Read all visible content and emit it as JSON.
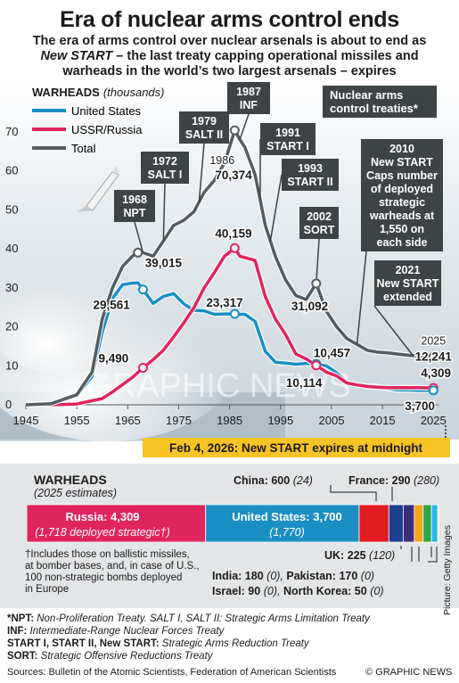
{
  "title": "Era of nuclear arms control ends",
  "subtitle": {
    "line1": "The era of arms control over nuclear arsenals is about to end as",
    "line2_italic": "New START",
    "line2_rest": " – the last treaty capping operational missiles and",
    "line3": "warheads in the world’s two largest arsenals – expires"
  },
  "chart_data": {
    "type": "line",
    "ylabel": "WARHEADS",
    "ylabel_unit": "(thousands)",
    "x_ticks": [
      1945,
      1955,
      1965,
      1975,
      1985,
      1995,
      2005,
      2015,
      2025
    ],
    "y_ticks": [
      0,
      10,
      20,
      30,
      40,
      50,
      60,
      70
    ],
    "xlim": [
      1945,
      2026
    ],
    "ylim": [
      0,
      72
    ],
    "grid": false,
    "legend_position": "top-left",
    "series": [
      {
        "name": "United States",
        "color": "#1a8fc4",
        "points": [
          [
            1945,
            0.002
          ],
          [
            1950,
            0.3
          ],
          [
            1955,
            2.4
          ],
          [
            1958,
            7.3
          ],
          [
            1960,
            18.6
          ],
          [
            1962,
            27.3
          ],
          [
            1964,
            30.8
          ],
          [
            1966,
            31.2
          ],
          [
            1967,
            31.255
          ],
          [
            1968,
            29.561
          ],
          [
            1970,
            26.0
          ],
          [
            1972,
            27.8
          ],
          [
            1974,
            28.5
          ],
          [
            1976,
            25.9
          ],
          [
            1978,
            24.2
          ],
          [
            1980,
            24.1
          ],
          [
            1982,
            23.2
          ],
          [
            1984,
            23.3
          ],
          [
            1986,
            23.317
          ],
          [
            1987,
            23.2
          ],
          [
            1988,
            23.2
          ],
          [
            1990,
            21.4
          ],
          [
            1992,
            13.7
          ],
          [
            1994,
            10.9
          ],
          [
            1996,
            10.7
          ],
          [
            1998,
            10.4
          ],
          [
            2000,
            10.6
          ],
          [
            2002,
            10.457
          ],
          [
            2004,
            10.0
          ],
          [
            2006,
            8.2
          ],
          [
            2008,
            5.7
          ],
          [
            2010,
            5.07
          ],
          [
            2012,
            4.8
          ],
          [
            2014,
            4.7
          ],
          [
            2016,
            4.2
          ],
          [
            2018,
            3.8
          ],
          [
            2020,
            3.8
          ],
          [
            2022,
            3.7
          ],
          [
            2025,
            3.7
          ]
        ]
      },
      {
        "name": "USSR/Russia",
        "color": "#e0245e",
        "points": [
          [
            1949,
            0.001
          ],
          [
            1950,
            0.005
          ],
          [
            1955,
            0.2
          ],
          [
            1960,
            1.6
          ],
          [
            1962,
            3.3
          ],
          [
            1964,
            5.2
          ],
          [
            1966,
            7.1
          ],
          [
            1968,
            9.49
          ],
          [
            1970,
            11.6
          ],
          [
            1972,
            14.0
          ],
          [
            1974,
            17.4
          ],
          [
            1976,
            21.0
          ],
          [
            1978,
            24.9
          ],
          [
            1980,
            30.0
          ],
          [
            1982,
            33.9
          ],
          [
            1984,
            38.1
          ],
          [
            1986,
            40.159
          ],
          [
            1987,
            38.1
          ],
          [
            1990,
            37.0
          ],
          [
            1992,
            27.7
          ],
          [
            1994,
            22.0
          ],
          [
            1996,
            18.0
          ],
          [
            1998,
            13.0
          ],
          [
            2000,
            11.8
          ],
          [
            2002,
            10.114
          ],
          [
            2004,
            8.4
          ],
          [
            2006,
            7.4
          ],
          [
            2008,
            5.6
          ],
          [
            2010,
            5.1
          ],
          [
            2012,
            4.7
          ],
          [
            2014,
            4.5
          ],
          [
            2016,
            4.4
          ],
          [
            2018,
            4.4
          ],
          [
            2020,
            4.4
          ],
          [
            2022,
            4.4
          ],
          [
            2025,
            4.309
          ]
        ]
      },
      {
        "name": "Total",
        "color": "#555c61",
        "points": [
          [
            1945,
            0.002
          ],
          [
            1950,
            0.3
          ],
          [
            1955,
            2.6
          ],
          [
            1958,
            8.4
          ],
          [
            1960,
            22.0
          ],
          [
            1962,
            30.0
          ],
          [
            1964,
            35.5
          ],
          [
            1966,
            38.2
          ],
          [
            1967,
            39.015
          ],
          [
            1968,
            39.0
          ],
          [
            1970,
            38.1
          ],
          [
            1972,
            42.0
          ],
          [
            1974,
            46.0
          ],
          [
            1976,
            47.3
          ],
          [
            1978,
            49.5
          ],
          [
            1980,
            54.5
          ],
          [
            1982,
            57.5
          ],
          [
            1984,
            62.0
          ],
          [
            1986,
            70.374
          ],
          [
            1987,
            68.0
          ],
          [
            1988,
            66.0
          ],
          [
            1990,
            59.0
          ],
          [
            1992,
            46.0
          ],
          [
            1994,
            38.0
          ],
          [
            1996,
            32.0
          ],
          [
            1998,
            28.0
          ],
          [
            2000,
            27.0
          ],
          [
            2002,
            31.092
          ],
          [
            2004,
            24.0
          ],
          [
            2006,
            20.0
          ],
          [
            2008,
            17.0
          ],
          [
            2010,
            15.5
          ],
          [
            2012,
            14.0
          ],
          [
            2014,
            13.5
          ],
          [
            2016,
            13.3
          ],
          [
            2018,
            13.0
          ],
          [
            2020,
            12.7
          ],
          [
            2022,
            12.5
          ],
          [
            2025,
            12.241
          ]
        ]
      }
    ],
    "data_labels": [
      {
        "text": "39,015",
        "series": "Total",
        "x": 1967,
        "y": 39.015
      },
      {
        "text": "29,561",
        "series": "United States",
        "x": 1968,
        "y": 29.561
      },
      {
        "text": "9,490",
        "series": "USSR/Russia",
        "x": 1968,
        "y": 9.49
      },
      {
        "text": "1986",
        "series": "Total",
        "x": 1986,
        "y": 70.374
      },
      {
        "text": "70,374",
        "series": "Total",
        "x": 1986,
        "y": 70.374
      },
      {
        "text": "40,159",
        "series": "USSR/Russia",
        "x": 1986,
        "y": 40.159
      },
      {
        "text": "23,317",
        "series": "United States",
        "x": 1986,
        "y": 23.317
      },
      {
        "text": "31,092",
        "series": "Total",
        "x": 2002,
        "y": 31.092
      },
      {
        "text": "10,457",
        "series": "United States",
        "x": 2002,
        "y": 10.457
      },
      {
        "text": "10,114",
        "series": "USSR/Russia",
        "x": 2002,
        "y": 10.114
      },
      {
        "text": "2025",
        "series": "Total",
        "x": 2025,
        "y": 12.241
      },
      {
        "text": "12,241",
        "series": "Total",
        "x": 2025,
        "y": 12.241
      },
      {
        "text": "4,309",
        "series": "USSR/Russia",
        "x": 2025,
        "y": 4.309
      },
      {
        "text": "3,700",
        "series": "United States",
        "x": 2025,
        "y": 3.7
      }
    ],
    "treaty_header": [
      "Nuclear arms",
      "control treaties*"
    ],
    "treaties": [
      {
        "year": 1968,
        "lines": [
          "1968",
          "NPT"
        ]
      },
      {
        "year": 1972,
        "lines": [
          "1972",
          "SALT I"
        ]
      },
      {
        "year": 1979,
        "lines": [
          "1979",
          "SALT II"
        ]
      },
      {
        "year": 1987,
        "lines": [
          "1987",
          "INF"
        ]
      },
      {
        "year": 1991,
        "lines": [
          "1991",
          "START I"
        ]
      },
      {
        "year": 1993,
        "lines": [
          "1993",
          "START II"
        ]
      },
      {
        "year": 2002,
        "lines": [
          "2002",
          "SORT"
        ]
      },
      {
        "year": 2010,
        "lines": [
          "2010",
          "New START",
          "Caps number",
          "of deployed",
          "strategic",
          "warheads at",
          "1,550 on",
          "each side"
        ]
      },
      {
        "year": 2021,
        "lines": [
          "2021",
          "New START",
          "extended"
        ]
      }
    ],
    "expiry_banner": "Feb 4, 2026: New START expires at midnight",
    "watermark": "GRAPHIC NEWS",
    "colors": {
      "us": "#1a8fc4",
      "russia": "#e0245e",
      "total": "#555c61",
      "label_box": "#3e4346",
      "banner": "#f7c325"
    }
  },
  "warheads_2025": {
    "heading": "WARHEADS",
    "subheading": "(2025 estimates)",
    "bars": [
      {
        "country": "Russia",
        "value": 4309,
        "deployed": 1718,
        "color": "#e0245e",
        "label": "Russia: 4,309",
        "sublabel": "(1,718 deployed strategic†)"
      },
      {
        "country": "United States",
        "value": 3700,
        "deployed": 1770,
        "color": "#1a8fc4",
        "label": "United States: 3,700",
        "sublabel": "(1,770)"
      },
      {
        "country": "China",
        "value": 600,
        "deployed": 24,
        "color": "#e11b22"
      },
      {
        "country": "France",
        "value": 290,
        "deployed": 280,
        "color": "#1f3f8f"
      },
      {
        "country": "UK",
        "value": 225,
        "deployed": 120,
        "color": "#3b2f7d"
      },
      {
        "country": "India",
        "value": 180,
        "deployed": 0,
        "color": "#f3a51c"
      },
      {
        "country": "Pakistan",
        "value": 170,
        "deployed": 0,
        "color": "#2ea44f"
      },
      {
        "country": "Israel",
        "value": 90,
        "deployed": 0,
        "color": "#29b6e8"
      },
      {
        "country": "North Korea",
        "value": 50,
        "deployed": 0,
        "color": "#96c93d"
      }
    ],
    "labels": {
      "china": "China: 600",
      "china_dep": "(24)",
      "france": "France: 290",
      "france_dep": "(280)",
      "uk": "UK: 225",
      "uk_dep": "(120)",
      "india": "India: 180",
      "india_dep": "(0),",
      "pakistan": "Pakistan: 170",
      "pakistan_dep": "(0)",
      "israel": "Israel: 90",
      "israel_dep": "(0),",
      "nk": "North Korea: 50",
      "nk_dep": "(0)"
    },
    "footnote": [
      "†Includes those on ballistic missiles,",
      "at bomber bases, and, in case of U.S.,",
      "100 non-strategic bombs deployed",
      "in Europe"
    ]
  },
  "notes": [
    {
      "abbr": "*NPT:",
      "text": " Non-Proliferation Treaty. SALT I, SALT II: Strategic Arms Limitation Treaty"
    },
    {
      "abbr": "INF:",
      "text": " Intermediate-Range Nuclear Forces Treaty"
    },
    {
      "abbr": "START I, START II, New START:",
      "text": " Strategic Arms Reduction Treaty"
    },
    {
      "abbr": "SORT:",
      "text": " Strategic Offensive Reductions Treaty"
    }
  ],
  "sources": "Sources: Bulletin of the Atomic Scientists, Federation of American Scientists",
  "credit": "© GRAPHIC NEWS",
  "picture_credit": "Picture: Getty Images"
}
